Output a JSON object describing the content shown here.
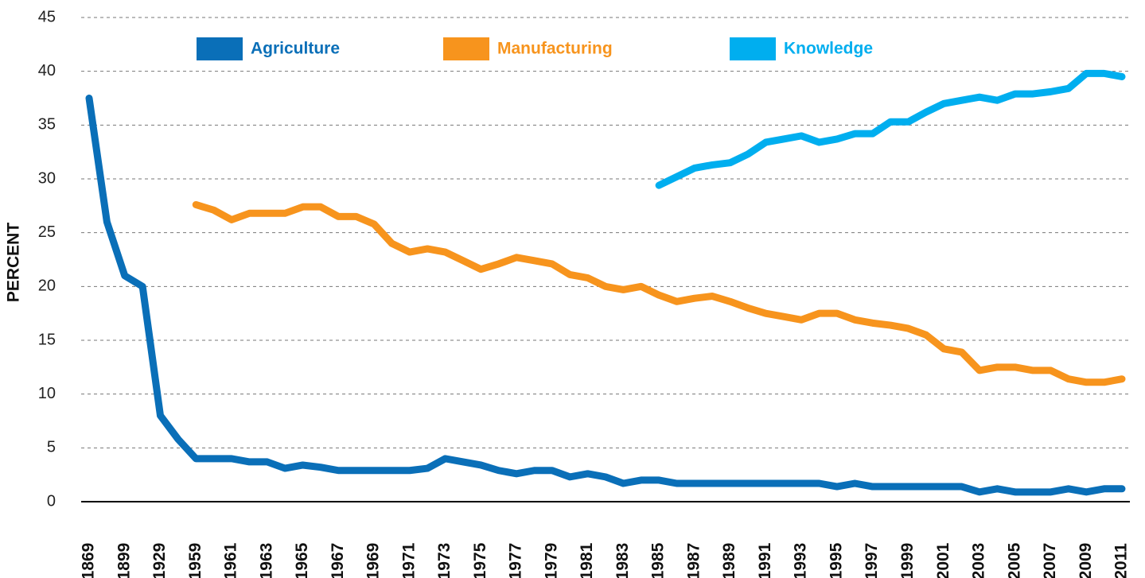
{
  "chart_data": {
    "type": "line",
    "y_label": "PERCENT",
    "categories": [
      "1869",
      null,
      "1899",
      null,
      "1929",
      null,
      "1959",
      null,
      "1961",
      null,
      "1963",
      null,
      "1965",
      null,
      "1967",
      null,
      "1969",
      null,
      "1971",
      null,
      "1973",
      null,
      "1975",
      null,
      "1977",
      null,
      "1979",
      null,
      "1981",
      null,
      "1983",
      null,
      "1985",
      null,
      "1987",
      null,
      "1989",
      null,
      "1991",
      null,
      "1993",
      null,
      "1995",
      null,
      "1997",
      null,
      "1999",
      null,
      "2001",
      null,
      "2003",
      null,
      "2005",
      null,
      "2007",
      null,
      "2009",
      null,
      "2011"
    ],
    "series": [
      {
        "name": "Agriculture",
        "color": "#0a6fb8",
        "values": [
          37.5,
          26,
          21,
          20,
          8,
          5.8,
          4,
          4,
          4,
          3.7,
          3.7,
          3.1,
          3.4,
          3.2,
          2.9,
          2.9,
          2.9,
          2.9,
          2.9,
          3.1,
          4,
          3.7,
          3.4,
          2.9,
          2.6,
          2.9,
          2.9,
          2.3,
          2.6,
          2.3,
          1.7,
          2,
          2,
          1.7,
          1.7,
          1.7,
          1.7,
          1.7,
          1.7,
          1.7,
          1.7,
          1.7,
          1.4,
          1.7,
          1.4,
          1.4,
          1.4,
          1.4,
          1.4,
          1.4,
          0.9,
          1.2,
          0.9,
          0.9,
          0.9,
          1.2,
          0.9,
          1.2,
          1.2
        ]
      },
      {
        "name": "Manufacturing",
        "color": "#f7941d",
        "values": [
          null,
          null,
          null,
          null,
          null,
          null,
          27.6,
          27.1,
          26.2,
          26.8,
          26.8,
          26.8,
          27.4,
          27.4,
          26.5,
          26.5,
          25.8,
          24,
          23.2,
          23.5,
          23.2,
          22.4,
          21.6,
          22.1,
          22.7,
          22.4,
          22.1,
          21.1,
          20.8,
          20,
          19.7,
          20,
          19.2,
          18.6,
          18.9,
          19.1,
          18.6,
          18,
          17.5,
          17.2,
          16.9,
          17.5,
          17.5,
          16.9,
          16.6,
          16.4,
          16.1,
          15.5,
          14.2,
          13.9,
          12.2,
          12.5,
          12.5,
          12.2,
          12.2,
          11.4,
          11.1,
          11.1,
          11.4
        ]
      },
      {
        "name": "Knowledge",
        "color": "#00aeef",
        "values": [
          null,
          null,
          null,
          null,
          null,
          null,
          null,
          null,
          null,
          null,
          null,
          null,
          null,
          null,
          null,
          null,
          null,
          null,
          null,
          null,
          null,
          null,
          null,
          null,
          null,
          null,
          null,
          null,
          null,
          null,
          null,
          null,
          29.4,
          30.2,
          31,
          31.3,
          31.5,
          32.3,
          33.4,
          33.7,
          34,
          33.4,
          33.7,
          34.2,
          34.2,
          35.3,
          35.3,
          36.2,
          37,
          37.3,
          37.6,
          37.3,
          37.9,
          37.9,
          38.1,
          38.4,
          39.8,
          39.8,
          39.5
        ]
      }
    ],
    "ylim": [
      0,
      45
    ],
    "yticks": [
      0,
      5,
      10,
      15,
      20,
      25,
      30,
      35,
      40,
      45
    ],
    "grid": true
  }
}
